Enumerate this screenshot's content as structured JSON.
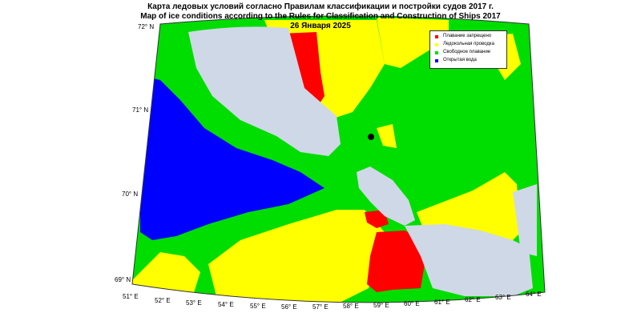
{
  "header": {
    "title_ru": "Карта ледовых условий согласно Правилам классификации и постройки судов 2017 г.",
    "title_en": "Map of ice conditions according to the Rules for Classification and Construction of Ships 2017",
    "date": "26 Января 2025"
  },
  "legend": {
    "items": [
      {
        "label": "Плавание запрещено",
        "color": "#ff0000"
      },
      {
        "label": "Ледокольная проводка",
        "color": "#ffff00"
      },
      {
        "label": "Свободное плавание",
        "color": "#00dd00"
      },
      {
        "label": "Открытая вода",
        "color": "#0000ff"
      }
    ]
  },
  "map": {
    "land_color": "#cfd8e6",
    "latitude_labels": [
      "72° N",
      "71° N",
      "70° N",
      "69° N"
    ],
    "longitude_labels": [
      "51° E",
      "52° E",
      "53° E",
      "54° E",
      "55° E",
      "56° E",
      "57° E",
      "58° E",
      "59° E",
      "60° E",
      "61° E",
      "62° E",
      "63° E",
      "64° E"
    ]
  }
}
